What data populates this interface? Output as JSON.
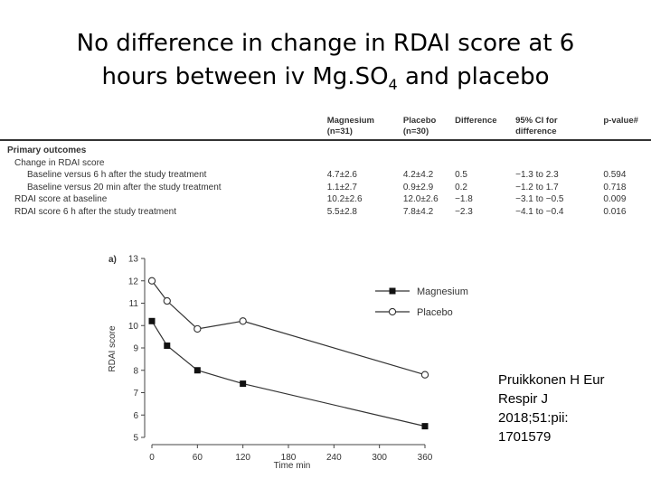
{
  "slide": {
    "title_line1": "No difference in change in RDAI score at 6",
    "title_line2_prefix": "hours between iv Mg.SO",
    "title_line2_sub": "4",
    "title_line2_suffix": " and placebo"
  },
  "table": {
    "headers": [
      {
        "line1": "Magnesium",
        "line2": "(n=31)"
      },
      {
        "line1": "Placebo",
        "line2": "(n=30)"
      },
      {
        "line1": "Difference",
        "line2": ""
      },
      {
        "line1": "95% CI for",
        "line2": "difference"
      },
      {
        "line1": "p-value#",
        "line2": ""
      }
    ],
    "section_label": "Primary outcomes",
    "group_label": "Change in RDAI score",
    "rows": [
      {
        "label": "Baseline versus 6 h after the study treatment",
        "magnesium": "4.7±2.6",
        "placebo": "4.2±4.2",
        "difference": "0.5",
        "ci": "−1.3 to 2.3",
        "p": "0.594"
      },
      {
        "label": "Baseline versus 20 min after the study treatment",
        "magnesium": "1.1±2.7",
        "placebo": "0.9±2.9",
        "difference": "0.2",
        "ci": "−1.2 to 1.7",
        "p": "0.718"
      },
      {
        "label": "RDAI score at baseline",
        "magnesium": "10.2±2.6",
        "placebo": "12.0±2.6",
        "difference": "−1.8",
        "ci": "−3.1 to −0.5",
        "p": "0.009"
      },
      {
        "label": "RDAI score 6 h after the study treatment",
        "magnesium": "5.5±2.8",
        "placebo": "7.8±4.2",
        "difference": "−2.3",
        "ci": "−4.1 to −0.4",
        "p": "0.016"
      }
    ]
  },
  "chart_data": {
    "type": "line",
    "panel_label": "a)",
    "xlabel": "Time min",
    "ylabel": "RDAI score",
    "xlim": [
      0,
      360
    ],
    "ylim": [
      5,
      13
    ],
    "xticks": [
      0,
      60,
      120,
      180,
      240,
      300,
      360
    ],
    "yticks": [
      5,
      6,
      7,
      8,
      9,
      10,
      11,
      12,
      13
    ],
    "legend_position": "top-right",
    "series": [
      {
        "name": "Magnesium",
        "marker": "filled-square",
        "x": [
          0,
          20,
          60,
          120,
          360
        ],
        "y": [
          10.2,
          9.1,
          8.0,
          7.4,
          5.5
        ]
      },
      {
        "name": "Placebo",
        "marker": "open-circle",
        "x": [
          0,
          20,
          60,
          120,
          360
        ],
        "y": [
          12.0,
          11.1,
          9.85,
          10.2,
          7.8
        ]
      }
    ]
  },
  "citation": {
    "line1": "Pruikkonen H Eur",
    "line2": "Respir J",
    "line3": "2018;51:pii:",
    "line4": "1701579"
  }
}
